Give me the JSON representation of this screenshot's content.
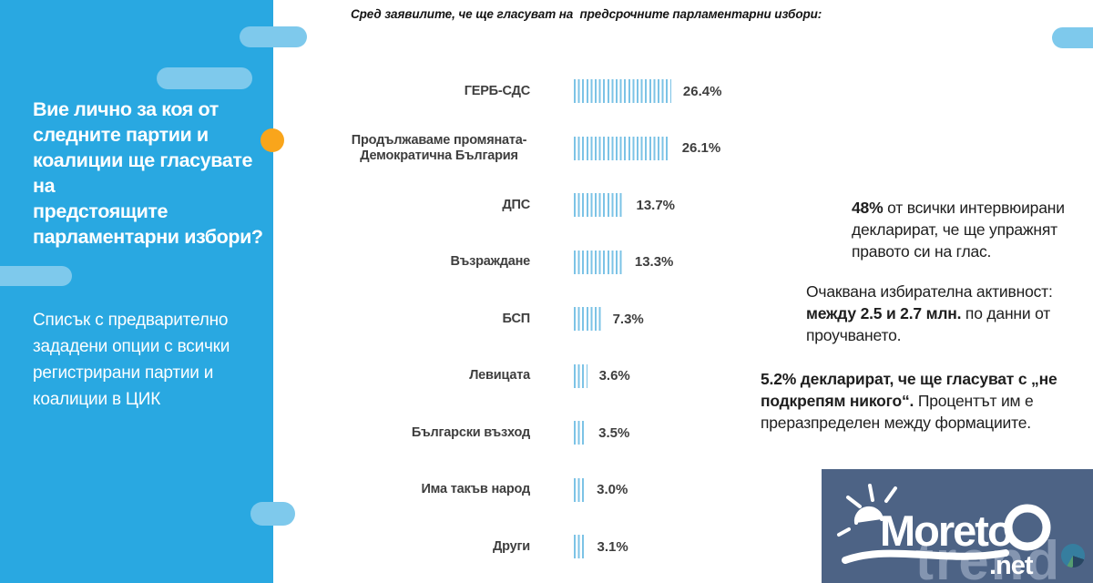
{
  "sidebar": {
    "title": "Вие лично за коя от\nследните партии и\nкоалиции ще гласувате на\nпредстоящите\nпарламентарни избори?",
    "subtitle": "Списък с предварително\nзададени опции с всички\nрегистрирани партии и\nкоалиции в ЦИК",
    "colors": {
      "background": "#29A8E1",
      "pill": "#7EC9EC",
      "accent_dot": "#F9A51B"
    }
  },
  "chart_data": {
    "type": "bar",
    "orientation": "horizontal",
    "title": "Сред заявилите, че ще гласуват на  предсрочните парламентарни избори:",
    "categories": [
      "ГЕРБ-СДС",
      "Продължаваме промяната-Демократична България",
      "ДПС",
      "Възраждане",
      "БСП",
      "Левицата",
      "Български възход",
      "Има такъв народ",
      "Други"
    ],
    "values": [
      26.4,
      26.1,
      13.7,
      13.3,
      7.3,
      3.6,
      3.5,
      3.0,
      3.1
    ],
    "value_labels": [
      "26.4%",
      "26.1%",
      "13.7%",
      "13.3%",
      "7.3%",
      "3.6%",
      "3.5%",
      "3.0%",
      "3.1%"
    ],
    "unit": "%",
    "xlim": [
      0,
      30
    ],
    "grid": false,
    "legend": false,
    "bar_color": "#7CC3E6",
    "bar_style": "vertical-hatch"
  },
  "right_column": {
    "blocks": [
      {
        "parts": [
          {
            "text": "48%",
            "bold": true
          },
          {
            "text": " от всички интервюирани декларират, че ще упражнят правото си на глас.",
            "bold": false
          }
        ]
      },
      {
        "parts": [
          {
            "text": "Очаквана избирателна активност: ",
            "bold": false
          },
          {
            "text": "между 2.5 и 2.7 млн.",
            "bold": true
          },
          {
            "text": " по данни от проучването.",
            "bold": false
          }
        ]
      },
      {
        "parts": [
          {
            "text": "5.2% декларират, че ще гласуват с „не подкрепям никого“.",
            "bold": true
          },
          {
            "text": " Процентът им е преразпределен между формациите.",
            "bold": false
          }
        ]
      }
    ]
  },
  "logo": {
    "brand": "Moreto",
    "suffix": ".net",
    "watermark": "trend",
    "colors": {
      "background": "#4D6385",
      "text": "#FFFFFF"
    }
  }
}
